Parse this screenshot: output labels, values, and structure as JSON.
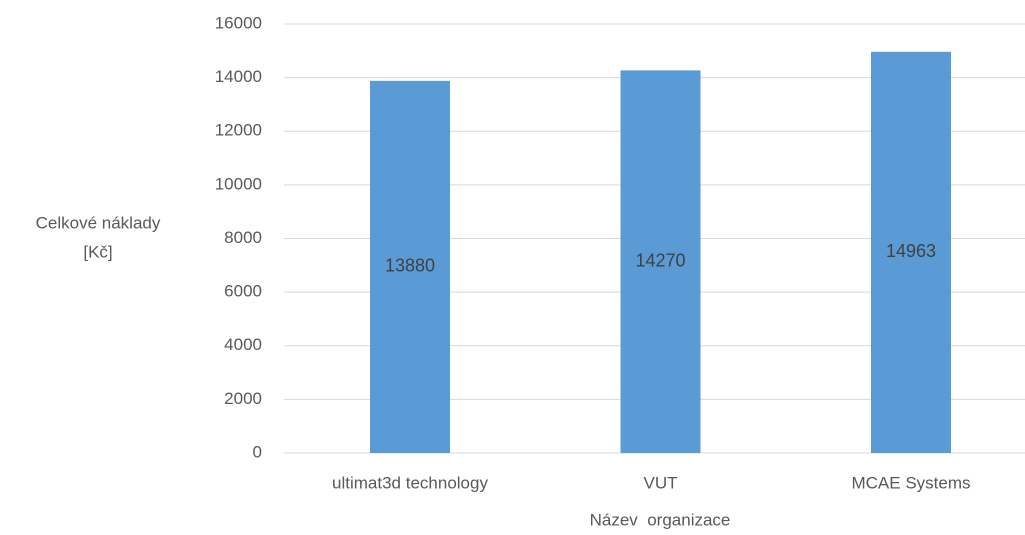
{
  "chart_data": {
    "type": "bar",
    "y_label": [
      "Celkové náklady",
      "[Kč]"
    ],
    "x_label": "Název  organizace",
    "categories": [
      "ultimat3d technology",
      "VUT",
      "MCAE Systems"
    ],
    "values": [
      13880,
      14270,
      14963
    ],
    "color": "#5b9bd5",
    "ylim": [
      0,
      16000
    ],
    "yticks": [
      0,
      2000,
      4000,
      6000,
      8000,
      10000,
      12000,
      14000,
      16000
    ],
    "grid": true
  }
}
